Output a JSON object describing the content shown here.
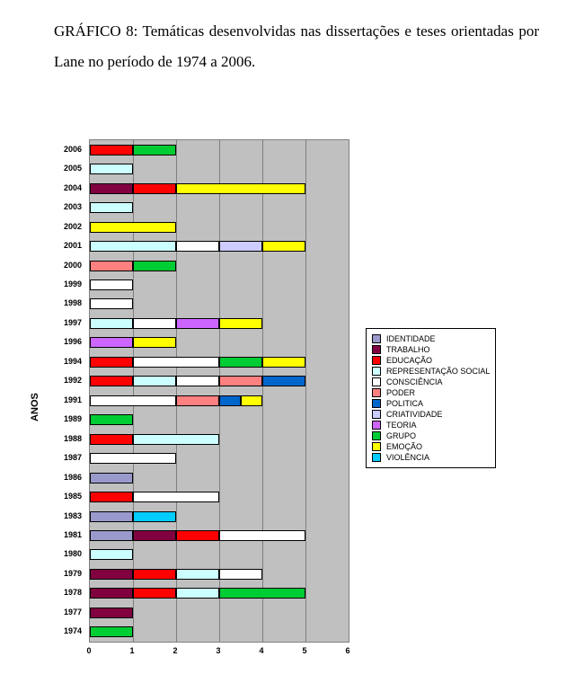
{
  "caption": "GRÁFICO 8: Temáticas desenvolvidas nas dissertações e teses orientadas por Lane no período de 1974 a 2006.",
  "axis_y_label": "ANOS",
  "xlim": [
    0,
    6
  ],
  "xtick_step": 1,
  "background_color": "#ffffff",
  "plot_bg": "#c0c0c0",
  "plot_border": "#7f7f7f",
  "grid_color": "#7f7f7f",
  "bar_border": "#000000",
  "title_fontsize": 17,
  "tick_fontsize": 9,
  "tick_fontweight": "bold",
  "axis_label_fontsize": 11,
  "legend_fontsize": 9,
  "series_colors": {
    "IDENTIDADE": "#9999cc",
    "TRABALHO": "#800040",
    "EDUCAÇÃO": "#ff0000",
    "REPRESENTAÇÃO SOCIAL": "#ccffff",
    "CONSCIÊNCIA": "#ffffff",
    "PODER": "#ff8080",
    "POLITICA": "#0066cc",
    "CRIATIVIDADE": "#ccccff",
    "TEORIA": "#cc66ff",
    "GRUPO": "#00cc33",
    "EMOÇÃO": "#ffff00",
    "VIOLÊNCIA": "#00ccff"
  },
  "legend_title": "",
  "legend_items": [
    "IDENTIDADE",
    "TRABALHO",
    "EDUCAÇÃO",
    "REPRESENTAÇÃO SOCIAL",
    "CONSCIÊNCIA",
    "PODER",
    "POLITICA",
    "CRIATIVIDADE",
    "TEORIA",
    "GRUPO",
    "EMOÇÃO",
    "VIOLÊNCIA"
  ],
  "years": [
    "2006",
    "2005",
    "2004",
    "2003",
    "2002",
    "2001",
    "2000",
    "1999",
    "1998",
    "1997",
    "1996",
    "1994",
    "1992",
    "1991",
    "1989",
    "1988",
    "1987",
    "1986",
    "1985",
    "1983",
    "1981",
    "1980",
    "1979",
    "1978",
    "1977",
    "1974"
  ],
  "data": {
    "2006": [
      [
        "EDUCAÇÃO",
        1
      ],
      [
        "GRUPO",
        1
      ]
    ],
    "2005": [
      [
        "REPRESENTAÇÃO SOCIAL",
        1
      ]
    ],
    "2004": [
      [
        "TRABALHO",
        1
      ],
      [
        "EDUCAÇÃO",
        1
      ],
      [
        "EMOÇÃO",
        3
      ]
    ],
    "2003": [
      [
        "REPRESENTAÇÃO SOCIAL",
        1
      ]
    ],
    "2002": [
      [
        "EMOÇÃO",
        2
      ]
    ],
    "2001": [
      [
        "REPRESENTAÇÃO SOCIAL",
        2
      ],
      [
        "CONSCIÊNCIA",
        1
      ],
      [
        "CRIATIVIDADE",
        1
      ],
      [
        "EMOÇÃO",
        1
      ]
    ],
    "2000": [
      [
        "PODER",
        1
      ],
      [
        "GRUPO",
        1
      ]
    ],
    "1999": [
      [
        "CONSCIÊNCIA",
        1
      ]
    ],
    "1998": [
      [
        "CONSCIÊNCIA",
        1
      ]
    ],
    "1997": [
      [
        "REPRESENTAÇÃO SOCIAL",
        1
      ],
      [
        "CONSCIÊNCIA",
        1
      ],
      [
        "TEORIA",
        1
      ],
      [
        "EMOÇÃO",
        1
      ]
    ],
    "1996": [
      [
        "TEORIA",
        1
      ],
      [
        "EMOÇÃO",
        1
      ]
    ],
    "1994": [
      [
        "EDUCAÇÃO",
        1
      ],
      [
        "CONSCIÊNCIA",
        2
      ],
      [
        "GRUPO",
        1
      ],
      [
        "EMOÇÃO",
        1
      ]
    ],
    "1992": [
      [
        "EDUCAÇÃO",
        1
      ],
      [
        "REPRESENTAÇÃO SOCIAL",
        1
      ],
      [
        "CONSCIÊNCIA",
        1
      ],
      [
        "PODER",
        1
      ],
      [
        "POLITICA",
        1
      ]
    ],
    "1991": [
      [
        "CONSCIÊNCIA",
        2
      ],
      [
        "PODER",
        1
      ],
      [
        "POLITICA",
        0.5
      ],
      [
        "EMOÇÃO",
        0.5
      ]
    ],
    "1989": [
      [
        "GRUPO",
        1
      ]
    ],
    "1988": [
      [
        "EDUCAÇÃO",
        1
      ],
      [
        "REPRESENTAÇÃO SOCIAL",
        2
      ]
    ],
    "1987": [
      [
        "CONSCIÊNCIA",
        2
      ]
    ],
    "1986": [
      [
        "IDENTIDADE",
        1
      ]
    ],
    "1985": [
      [
        "EDUCAÇÃO",
        1
      ],
      [
        "CONSCIÊNCIA",
        2
      ]
    ],
    "1983": [
      [
        "IDENTIDADE",
        1
      ],
      [
        "VIOLÊNCIA",
        1
      ]
    ],
    "1981": [
      [
        "IDENTIDADE",
        1
      ],
      [
        "TRABALHO",
        1
      ],
      [
        "EDUCAÇÃO",
        1
      ],
      [
        "CONSCIÊNCIA",
        2
      ]
    ],
    "1980": [
      [
        "REPRESENTAÇÃO SOCIAL",
        1
      ]
    ],
    "1979": [
      [
        "TRABALHO",
        1
      ],
      [
        "EDUCAÇÃO",
        1
      ],
      [
        "REPRESENTAÇÃO SOCIAL",
        1
      ],
      [
        "CONSCIÊNCIA",
        1
      ]
    ],
    "1978": [
      [
        "TRABALHO",
        1
      ],
      [
        "EDUCAÇÃO",
        1
      ],
      [
        "REPRESENTAÇÃO SOCIAL",
        1
      ],
      [
        "GRUPO",
        2
      ]
    ],
    "1977": [
      [
        "TRABALHO",
        1
      ]
    ],
    "1974": [
      [
        "GRUPO",
        1
      ]
    ]
  }
}
